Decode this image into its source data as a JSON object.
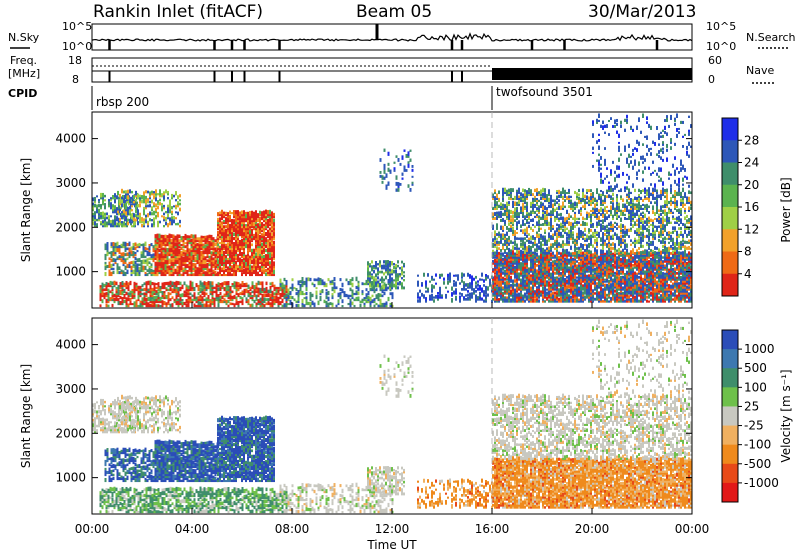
{
  "header": {
    "station": "Rankin Inlet (fitACF)",
    "beam": "Beam 05",
    "date": "30/Mar/2013"
  },
  "panels": {
    "nsky_label": "N.Sky",
    "nsearch_label": "N.Search",
    "freq_label_line1": "Freq.",
    "freq_label_line2": "[MHz]",
    "nave_label": "Nave",
    "cpid_label": "CPID",
    "nsky_ticks": [
      "10^5",
      "10^0"
    ],
    "nsearch_ticks": [
      "10^5",
      "10^0"
    ],
    "freq_ticks": [
      "18",
      "8"
    ],
    "nave_ticks": [
      "60",
      "0"
    ],
    "cpid_programs": [
      {
        "name": "rbsp 200",
        "start_hour": 0
      },
      {
        "name": "twofsound 3501",
        "start_hour": 16
      }
    ]
  },
  "chart_data": [
    {
      "type": "heatmap",
      "name": "power-panel",
      "ylabel": "Slant Range [km]",
      "yticks": [
        1000,
        2000,
        3000,
        4000
      ],
      "ylim": [
        180,
        4600
      ],
      "colorbar_label": "Power [dB]",
      "colorbar_ticks": [
        "28",
        "24",
        "20",
        "16",
        "12",
        "8",
        "4"
      ],
      "colors": [
        "#1f2ee8",
        "#2d57b8",
        "#3f8e6b",
        "#5bb34f",
        "#9fd046",
        "#f2a12a",
        "#ef6a16",
        "#e02518"
      ]
    },
    {
      "type": "heatmap",
      "name": "velocity-panel",
      "ylabel": "Slant Range [km]",
      "yticks": [
        1000,
        2000,
        3000,
        4000
      ],
      "ylim": [
        180,
        4600
      ],
      "colorbar_label": "Velocity [m s⁻¹]",
      "colorbar_ticks": [
        "1000",
        "500",
        "100",
        "25",
        "-25",
        "-100",
        "-500",
        "-1000"
      ],
      "colors": [
        "#2b4db8",
        "#3d78b0",
        "#3f8e6b",
        "#6ec04a",
        "#c8c8c0",
        "#f0b060",
        "#ef8a1c",
        "#e84a18",
        "#e21818"
      ]
    }
  ],
  "xaxis": {
    "label": "Time UT",
    "ticks": [
      "00:00",
      "04:00",
      "08:00",
      "12:00",
      "16:00",
      "20:00",
      "00:00"
    ]
  }
}
